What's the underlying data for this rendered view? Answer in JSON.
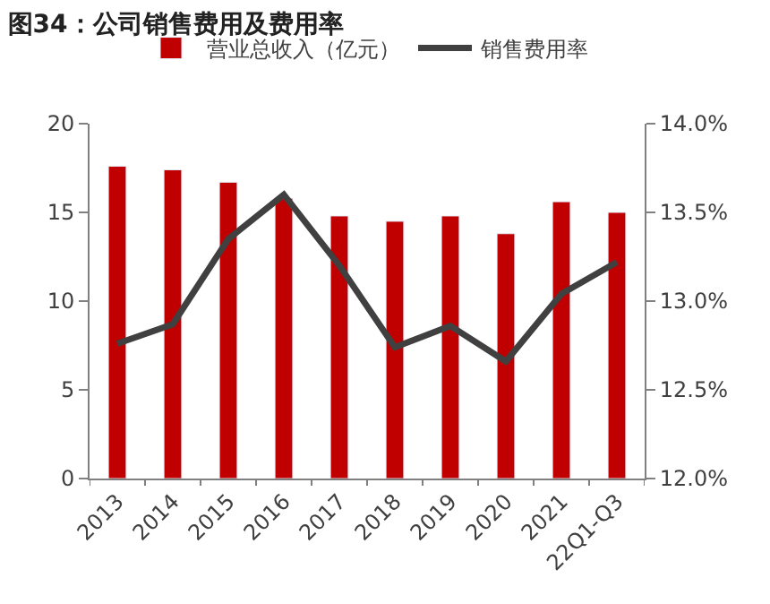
{
  "chart_data": {
    "type": "bar",
    "title": "图34：公司销售费用及费用率",
    "categories": [
      "2013",
      "2014",
      "2015",
      "2016",
      "2017",
      "2018",
      "2019",
      "2020",
      "2021",
      "22Q1-Q3"
    ],
    "series": [
      {
        "name": "营业总收入（亿元）",
        "color": "#c00000",
        "values": [
          17.6,
          17.4,
          16.7,
          15.8,
          14.8,
          14.5,
          14.8,
          13.8,
          15.6,
          15.0
        ]
      },
      {
        "name": "销售费用率",
        "type": "line",
        "axis": "y2",
        "color": "#404040",
        "values": [
          12.76,
          12.87,
          13.35,
          13.6,
          13.2,
          12.74,
          12.86,
          12.66,
          13.04,
          13.22
        ]
      }
    ],
    "ylim": [
      0,
      20
    ],
    "yticks": [
      0,
      5,
      10,
      15,
      20
    ],
    "y2lim": [
      12,
      14
    ],
    "y2ticks": [
      {
        "value": 12,
        "label": "12.0%"
      },
      {
        "value": 12.5,
        "label": "12.5%"
      },
      {
        "value": 13,
        "label": "13.0%"
      },
      {
        "value": 13.5,
        "label": "13.5%"
      },
      {
        "value": 14,
        "label": "14.0%"
      }
    ],
    "legend": "top",
    "marker": "none",
    "line_style": "solid"
  }
}
